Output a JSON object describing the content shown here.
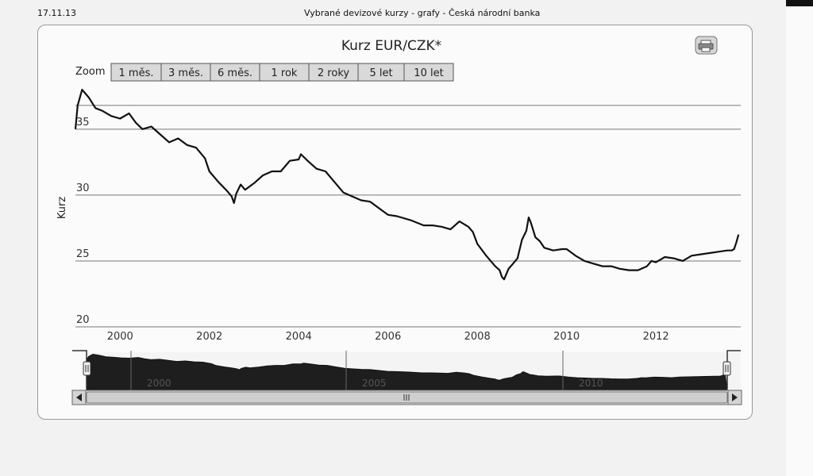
{
  "header": {
    "date": "17.11.13",
    "title": "Vybrané devizové kurzy - grafy - Česká národní banka"
  },
  "zoom": {
    "label": "Zoom",
    "options": [
      "1 měs.",
      "3 měs.",
      "6 měs.",
      "1 rok",
      "2 roky",
      "5 let",
      "10 let"
    ]
  },
  "icons": {
    "print": "printer-icon",
    "nav_left": "arrow-left-icon",
    "nav_right": "arrow-right-icon",
    "scroll_grip": "grip-icon"
  },
  "navigator": {
    "labels": [
      "2000",
      "2005",
      "2010"
    ]
  },
  "chart_data": {
    "type": "line",
    "title": "Kurz EUR/CZK*",
    "ylabel": "Kurz",
    "xlabel": "",
    "xlim": [
      1999.0,
      2013.9
    ],
    "ylim": [
      20,
      38
    ],
    "grid": true,
    "x_ticks": [
      "2000",
      "2002",
      "2004",
      "2006",
      "2008",
      "2010",
      "2012"
    ],
    "y_ticks": [
      "20",
      "25",
      "30",
      "35"
    ],
    "series": [
      {
        "x": [
          1999.0,
          1999.05,
          1999.15,
          1999.3,
          1999.45,
          1999.6,
          1999.8,
          2000.0,
          2000.2,
          2000.35,
          2000.5,
          2000.7,
          2000.9,
          2001.1,
          2001.3,
          2001.5,
          2001.7,
          2001.9,
          2002.0,
          2002.2,
          2002.4,
          2002.5,
          2002.55,
          2002.6,
          2002.7,
          2002.8,
          2003.0,
          2003.2,
          2003.4,
          2003.6,
          2003.8,
          2004.0,
          2004.05,
          2004.2,
          2004.4,
          2004.6,
          2004.8,
          2005.0,
          2005.2,
          2005.4,
          2005.6,
          2005.8,
          2006.0,
          2006.2,
          2006.5,
          2006.8,
          2007.0,
          2007.2,
          2007.4,
          2007.6,
          2007.8,
          2007.9,
          2008.0,
          2008.2,
          2008.4,
          2008.5,
          2008.55,
          2008.6,
          2008.7,
          2008.8,
          2008.9,
          2009.0,
          2009.1,
          2009.15,
          2009.2,
          2009.3,
          2009.4,
          2009.5,
          2009.7,
          2009.9,
          2010.0,
          2010.2,
          2010.4,
          2010.6,
          2010.8,
          2011.0,
          2011.2,
          2011.4,
          2011.6,
          2011.8,
          2011.9,
          2012.0,
          2012.2,
          2012.4,
          2012.6,
          2012.8,
          2013.0,
          2013.2,
          2013.4,
          2013.6,
          2013.7,
          2013.75,
          2013.8,
          2013.85
        ],
        "values": [
          35.0,
          36.8,
          38.0,
          37.4,
          36.6,
          36.4,
          36.0,
          35.8,
          36.2,
          35.5,
          35.0,
          35.2,
          34.6,
          34.0,
          34.3,
          33.8,
          33.6,
          32.8,
          31.8,
          31.0,
          30.3,
          29.9,
          29.4,
          30.1,
          30.8,
          30.4,
          30.9,
          31.5,
          31.8,
          31.8,
          32.6,
          32.7,
          33.1,
          32.6,
          32.0,
          31.8,
          31.0,
          30.2,
          29.9,
          29.6,
          29.5,
          29.0,
          28.5,
          28.4,
          28.1,
          27.7,
          27.7,
          27.6,
          27.4,
          28.0,
          27.6,
          27.2,
          26.3,
          25.4,
          24.6,
          24.3,
          23.8,
          23.6,
          24.4,
          24.8,
          25.2,
          26.6,
          27.3,
          28.3,
          27.9,
          26.8,
          26.5,
          26.0,
          25.8,
          25.9,
          25.9,
          25.4,
          25.0,
          24.8,
          24.6,
          24.6,
          24.4,
          24.3,
          24.3,
          24.6,
          25.0,
          24.9,
          25.3,
          25.2,
          25.0,
          25.4,
          25.5,
          25.6,
          25.7,
          25.8,
          25.8,
          25.9,
          26.4,
          27.0
        ]
      }
    ]
  }
}
